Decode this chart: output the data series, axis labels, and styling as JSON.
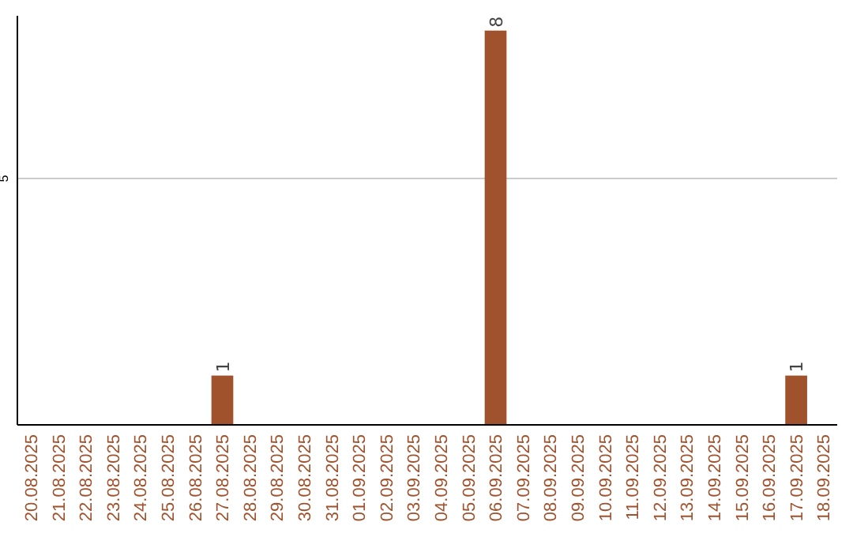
{
  "chart_data": {
    "type": "bar",
    "categories": [
      "20.08.2025",
      "21.08.2025",
      "22.08.2025",
      "23.08.2025",
      "24.08.2025",
      "25.08.2025",
      "26.08.2025",
      "27.08.2025",
      "28.08.2025",
      "29.08.2025",
      "30.08.2025",
      "31.08.2025",
      "01.09.2025",
      "02.09.2025",
      "03.09.2025",
      "04.09.2025",
      "05.09.2025",
      "06.09.2025",
      "07.09.2025",
      "08.09.2025",
      "09.09.2025",
      "10.09.2025",
      "11.09.2025",
      "12.09.2025",
      "13.09.2025",
      "14.09.2025",
      "15.09.2025",
      "16.09.2025",
      "17.09.2025",
      "18.09.2025"
    ],
    "values": [
      0,
      0,
      0,
      0,
      0,
      0,
      0,
      1,
      0,
      0,
      0,
      0,
      0,
      0,
      0,
      0,
      0,
      8,
      0,
      0,
      0,
      0,
      0,
      0,
      0,
      0,
      0,
      0,
      1,
      0
    ],
    "color": "#a0522d",
    "value_labels": [
      null,
      null,
      null,
      null,
      null,
      null,
      null,
      "1",
      null,
      null,
      null,
      null,
      null,
      null,
      null,
      null,
      null,
      "8",
      null,
      null,
      null,
      null,
      null,
      null,
      null,
      null,
      null,
      null,
      "1",
      null
    ],
    "ylim": [
      0,
      8.3
    ],
    "yticks": [
      5
    ],
    "grid": "y"
  }
}
